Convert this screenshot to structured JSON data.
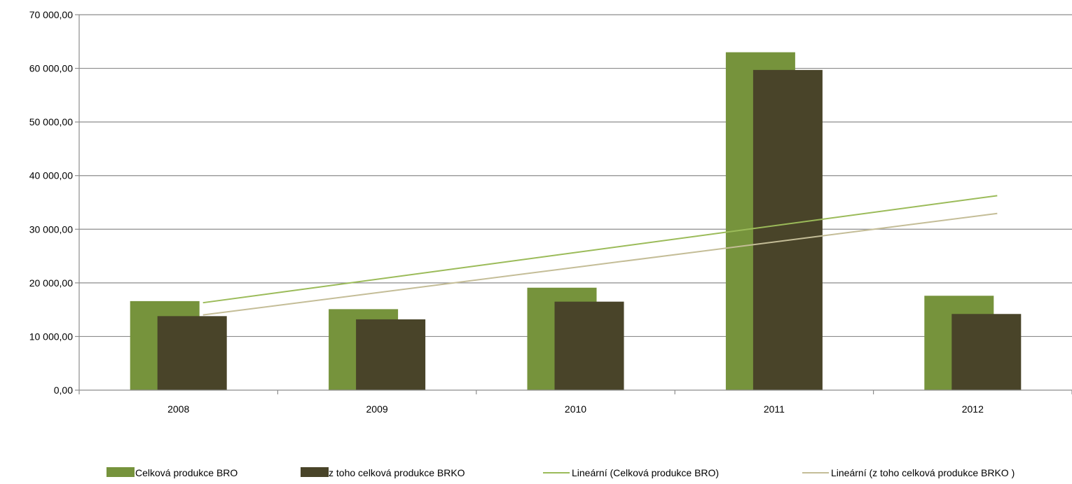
{
  "chart_data": {
    "type": "bar",
    "categories": [
      "2008",
      "2009",
      "2010",
      "2011",
      "2012"
    ],
    "series": [
      {
        "name": "Celková produkce BRO",
        "values": [
          16600,
          15100,
          19100,
          63000,
          17600
        ],
        "color": "#76933c"
      },
      {
        "name": "z toho celková produkce BRKO",
        "values": [
          13800,
          13200,
          16500,
          59700,
          14200
        ],
        "color": "#494429"
      }
    ],
    "trendlines": [
      {
        "name": "Lineární (Celková produkce BRO)",
        "color": "#9bbb59"
      },
      {
        "name": "Lineární (z toho celková produkce BRKO )",
        "color": "#c4bd97"
      }
    ],
    "y_tick_labels": [
      "0,00",
      "10 000,00",
      "20 000,00",
      "30 000,00",
      "40 000,00",
      "50 000,00",
      "60 000,00",
      "70 000,00"
    ],
    "ylim": [
      0,
      70000
    ],
    "grid": true,
    "legend_position": "bottom"
  }
}
